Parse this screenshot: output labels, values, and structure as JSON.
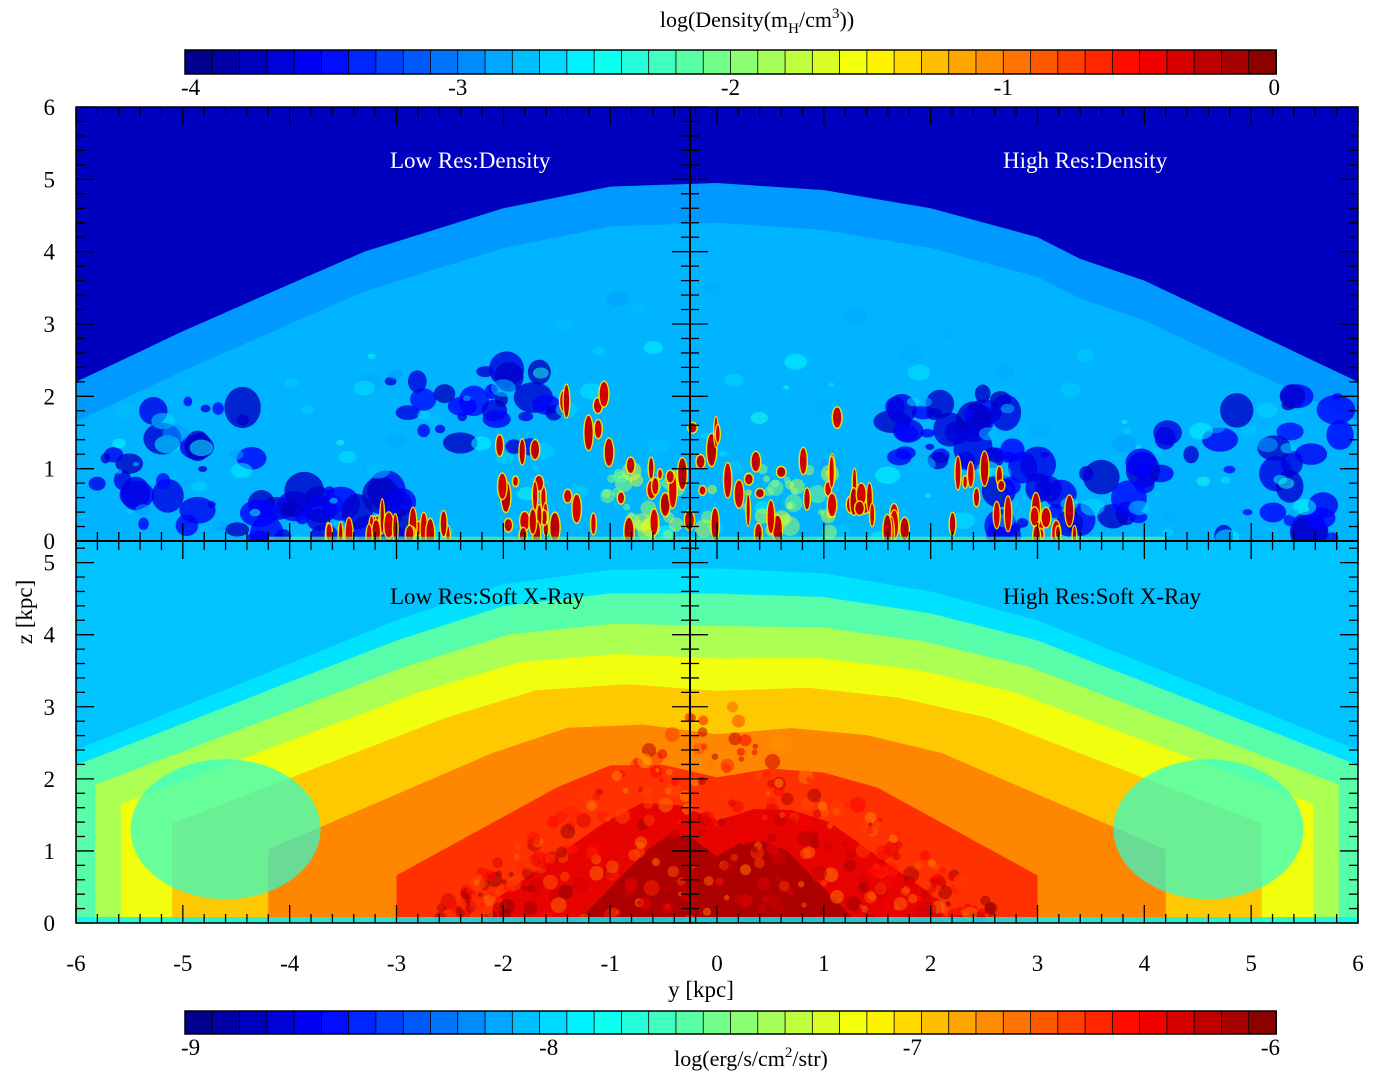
{
  "chart_data": {
    "type": "heatmap",
    "colormap": "jet",
    "colorbars": [
      {
        "id": "density",
        "title": "log(Density(m",
        "title_sub": "H",
        "title_mid": "/cm",
        "title_sup": "3",
        "title_end": "))",
        "range": [
          -4,
          0
        ],
        "ticks": [
          "-4",
          "-3",
          "-2",
          "-1",
          "0"
        ],
        "segments": 40
      },
      {
        "id": "xray",
        "title": "log(erg/s/cm",
        "title_sup": "2",
        "title_end": "/str)",
        "range": [
          -9,
          -6
        ],
        "ticks": [
          "-9",
          "-8",
          "-7",
          "-6"
        ],
        "segments": 40
      }
    ],
    "xlabel": "y [kpc]",
    "ylabel": "z [kpc]",
    "xlim": [
      -6,
      6
    ],
    "xticks": [
      "-6",
      "-5",
      "-4",
      "-3",
      "-2",
      "-1",
      "0",
      "1",
      "2",
      "3",
      "4",
      "5",
      "6"
    ],
    "ylim_top": [
      0,
      6
    ],
    "yticks_top": [
      "0",
      "1",
      "2",
      "3",
      "4",
      "5",
      "6"
    ],
    "ylim_bottom": [
      0,
      6
    ],
    "yticks_bottom": [
      "0",
      "1",
      "2",
      "3",
      "4",
      "5"
    ],
    "panels": [
      {
        "label": "Low Res:Density",
        "row": "top",
        "side": "left",
        "field": "density",
        "resolution": "low"
      },
      {
        "label": "High Res:Density",
        "row": "top",
        "side": "right",
        "field": "density",
        "resolution": "high"
      },
      {
        "label": "Low Res:Soft X-Ray",
        "row": "bottom",
        "side": "left",
        "field": "xray",
        "resolution": "low"
      },
      {
        "label": "High Res:Soft X-Ray",
        "row": "bottom",
        "side": "right",
        "field": "xray",
        "resolution": "high"
      }
    ],
    "density_structure": {
      "background": -3.75,
      "shell_value": -2.9,
      "shell_height_kpc": [
        [
          -6,
          2.2
        ],
        [
          -5,
          2.9
        ],
        [
          -4,
          3.55
        ],
        [
          -3.3,
          4.0
        ],
        [
          -2,
          4.6
        ],
        [
          -1,
          4.9
        ],
        [
          0,
          4.95
        ],
        [
          1,
          4.85
        ],
        [
          2,
          4.6
        ],
        [
          3,
          4.2
        ],
        [
          3.4,
          3.9
        ],
        [
          4,
          3.6
        ],
        [
          5,
          2.9
        ],
        [
          6,
          2.2
        ]
      ],
      "inner_bubble_value": -3.45,
      "dense_clump_value": -0.2
    },
    "xray_structure": {
      "background": -8.05,
      "halo_value": -7.75,
      "core_peak_value": -6.05,
      "shell_height_kpc": [
        [
          -6,
          2.4
        ],
        [
          -5,
          3.0
        ],
        [
          -4,
          3.6
        ],
        [
          -3,
          4.2
        ],
        [
          -2,
          4.7
        ],
        [
          -1,
          4.9
        ],
        [
          0,
          4.92
        ],
        [
          1,
          4.85
        ],
        [
          2,
          4.6
        ],
        [
          3,
          4.2
        ],
        [
          4,
          3.6
        ],
        [
          5,
          3.0
        ],
        [
          6,
          2.4
        ]
      ]
    }
  }
}
